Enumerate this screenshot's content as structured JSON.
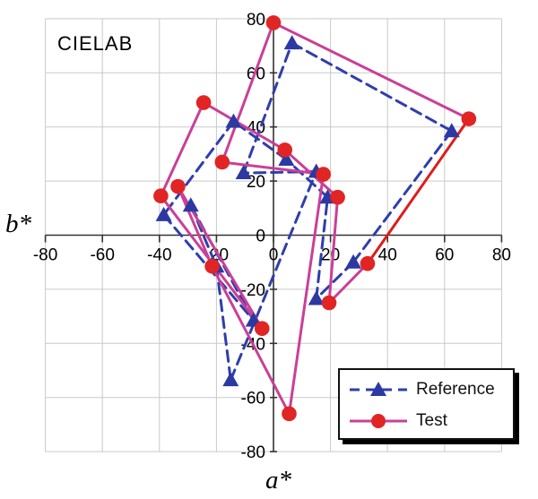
{
  "title": "CIELAB",
  "chart_data": {
    "type": "line",
    "title": "CIELAB",
    "xlabel": "a*",
    "ylabel": "b*",
    "xlim": [
      -80,
      80
    ],
    "ylim": [
      -80,
      80
    ],
    "xticks": [
      -80,
      -60,
      -40,
      -20,
      0,
      20,
      40,
      60,
      80
    ],
    "yticks": [
      -80,
      -60,
      -40,
      -20,
      0,
      20,
      40,
      60,
      80
    ],
    "grid": true,
    "grid_color": "#c9c9c9",
    "axis_color": "#333333",
    "legend_position": "bottom-right",
    "series": [
      {
        "name": "Reference",
        "line_style": "dashed",
        "line_color": "#2e3ead",
        "marker": "triangle",
        "marker_color": "#2c39a2",
        "closed": true,
        "points": [
          [
            6.5,
            71
          ],
          [
            62.5,
            38.5
          ],
          [
            28,
            -10
          ],
          [
            15,
            -23.5
          ],
          [
            19,
            14
          ],
          [
            4.5,
            28
          ],
          [
            -14,
            42
          ],
          [
            -38.5,
            7.5
          ],
          [
            -7,
            -31.5
          ],
          [
            -29,
            11
          ],
          [
            -20,
            -11.5
          ],
          [
            -15,
            -53.5
          ],
          [
            15,
            23.5
          ],
          [
            -10.5,
            23
          ]
        ]
      },
      {
        "name": "Test",
        "line_style": "solid",
        "line_color": "#c94097",
        "marker": "circle",
        "marker_color": "#e12424",
        "closed": true,
        "red_segment": {
          "from_index": 1,
          "to_index": 2,
          "color": "#dd1c1c"
        },
        "points": [
          [
            0,
            78.5
          ],
          [
            68.5,
            43
          ],
          [
            33,
            -10.5
          ],
          [
            19.5,
            -25
          ],
          [
            22.5,
            14
          ],
          [
            4,
            31.5
          ],
          [
            -24.5,
            49
          ],
          [
            -39.5,
            14.5
          ],
          [
            -4,
            -34.5
          ],
          [
            -33.5,
            18
          ],
          [
            -21.5,
            -11.5
          ],
          [
            5.5,
            -66
          ],
          [
            17.5,
            22.5
          ],
          [
            -18,
            27
          ]
        ]
      }
    ]
  },
  "legend": {
    "reference_label": "Reference",
    "test_label": "Test"
  }
}
